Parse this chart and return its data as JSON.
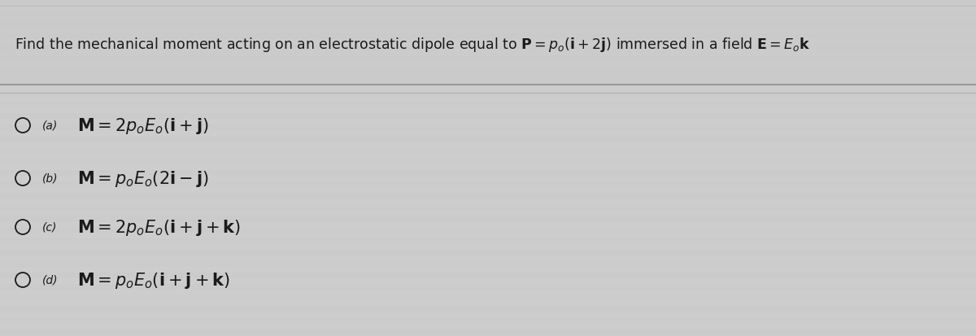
{
  "background_color": "#c8c8c8",
  "header_bg": "#cccccc",
  "body_bg": "#d2d2d2",
  "stripe_color": "#b8b8b8",
  "divider_color": "#999999",
  "text_color": "#1a1a1a",
  "header_text_plain": "Find the mechanical moment acting on an electrostatic dipole equal to ",
  "header_math_P": "$\\mathbf{P} = p_o(\\mathbf{i}+ 2\\mathbf{j})$",
  "header_text_mid": " immersed in a field ",
  "header_math_E": "$\\mathbf{E} = E_o\\mathbf{k}$",
  "header_fontsize": 12.5,
  "header_math_fontsize": 12.5,
  "options": [
    {
      "label": "(a)",
      "formula": "$\\mathbf{M} = 2p_oE_o(\\mathbf{i}+\\mathbf{j})$"
    },
    {
      "label": "(b)",
      "formula": "$\\mathbf{M} = p_oE_o(2\\mathbf{i}-\\mathbf{j})$"
    },
    {
      "label": "(c)",
      "formula": "$\\mathbf{M} = 2p_oE_o(\\mathbf{i}+\\mathbf{j}+\\mathbf{k})$"
    },
    {
      "label": "(d)",
      "formula": "$\\mathbf{M} = p_oE_o(\\mathbf{i}+\\mathbf{j}+\\mathbf{k})$"
    }
  ],
  "option_fontsize": 15,
  "label_fontsize": 10,
  "figwidth": 12.0,
  "figheight": 4.14,
  "dpi": 100
}
